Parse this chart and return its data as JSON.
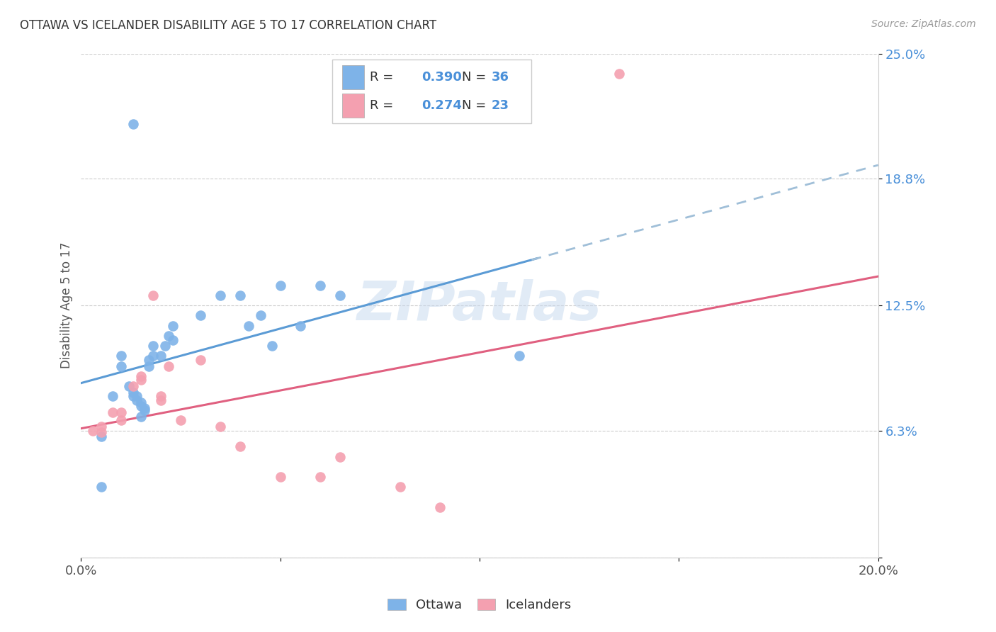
{
  "title": "OTTAWA VS ICELANDER DISABILITY AGE 5 TO 17 CORRELATION CHART",
  "source": "Source: ZipAtlas.com",
  "ylabel": "Disability Age 5 to 17",
  "watermark": "ZIPatlas",
  "legend_r1": "R = 0.390",
  "legend_n1": "N = 36",
  "legend_r2": "R = 0.274",
  "legend_n2": "N = 23",
  "xlim": [
    0.0,
    0.2
  ],
  "ylim": [
    0.0,
    0.25
  ],
  "yticks": [
    0.0,
    0.063,
    0.125,
    0.188,
    0.25
  ],
  "ytick_labels": [
    "",
    "6.3%",
    "12.5%",
    "18.8%",
    "25.0%"
  ],
  "xticks": [
    0.0,
    0.05,
    0.1,
    0.15,
    0.2
  ],
  "xtick_labels": [
    "0.0%",
    "",
    "",
    "",
    "20.0%"
  ],
  "blue_color": "#7EB3E8",
  "pink_color": "#F4A0B0",
  "trend_blue": "#5B9BD5",
  "trend_pink": "#E06080",
  "trend_blue_dash": "#A0BFD8",
  "ottawa_x": [
    0.005,
    0.008,
    0.01,
    0.01,
    0.012,
    0.013,
    0.013,
    0.014,
    0.014,
    0.015,
    0.015,
    0.015,
    0.016,
    0.016,
    0.017,
    0.017,
    0.018,
    0.018,
    0.02,
    0.021,
    0.022,
    0.023,
    0.023,
    0.03,
    0.035,
    0.04,
    0.042,
    0.045,
    0.048,
    0.05,
    0.055,
    0.06,
    0.065,
    0.11,
    0.005,
    0.013
  ],
  "ottawa_y": [
    0.035,
    0.08,
    0.095,
    0.1,
    0.085,
    0.08,
    0.082,
    0.078,
    0.08,
    0.075,
    0.077,
    0.07,
    0.074,
    0.073,
    0.095,
    0.098,
    0.1,
    0.105,
    0.1,
    0.105,
    0.11,
    0.115,
    0.108,
    0.12,
    0.13,
    0.13,
    0.115,
    0.12,
    0.105,
    0.135,
    0.115,
    0.135,
    0.13,
    0.1,
    0.06,
    0.215
  ],
  "icelander_x": [
    0.003,
    0.005,
    0.005,
    0.008,
    0.01,
    0.01,
    0.013,
    0.015,
    0.015,
    0.018,
    0.02,
    0.02,
    0.022,
    0.025,
    0.03,
    0.035,
    0.04,
    0.05,
    0.06,
    0.065,
    0.08,
    0.09,
    0.135
  ],
  "icelander_y": [
    0.063,
    0.062,
    0.065,
    0.072,
    0.068,
    0.072,
    0.085,
    0.088,
    0.09,
    0.13,
    0.078,
    0.08,
    0.095,
    0.068,
    0.098,
    0.065,
    0.055,
    0.04,
    0.04,
    0.05,
    0.035,
    0.025,
    0.24
  ]
}
